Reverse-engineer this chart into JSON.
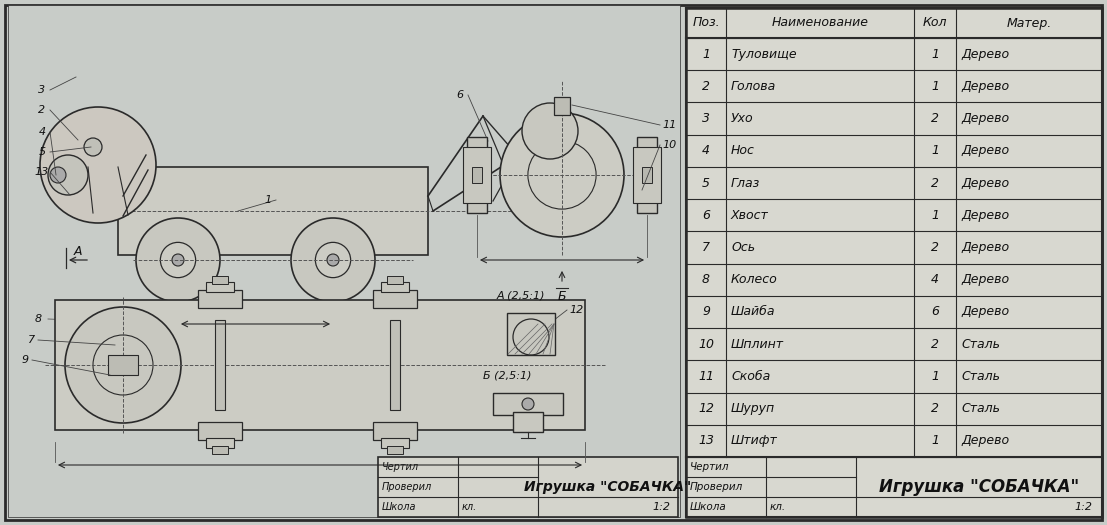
{
  "bg_color": "#c8ccc8",
  "border_color": "#1a1a1a",
  "drawing_bg": "#c8ccc8",
  "table_bg": "#d4d4cc",
  "title": "Игрушка «СОБАЧКА»",
  "scale": "1:2",
  "rows": [
    {
      "pos": "1",
      "name": "Туловище",
      "qty": "1",
      "mat": "Дерево"
    },
    {
      "pos": "2",
      "name": "Голова",
      "qty": "1",
      "mat": "Дерево"
    },
    {
      "pos": "3",
      "name": "Ухо",
      "qty": "2",
      "mat": "Дерево"
    },
    {
      "pos": "4",
      "name": "Нос",
      "qty": "1",
      "mat": "Дерево"
    },
    {
      "pos": "5",
      "name": "Глаз",
      "qty": "2",
      "mat": "Дерево"
    },
    {
      "pos": "6",
      "name": "Хвост",
      "qty": "1",
      "mat": "Дерево"
    },
    {
      "pos": "7",
      "name": "Ось",
      "qty": "2",
      "mat": "Дерево"
    },
    {
      "pos": "8",
      "name": "Колесо",
      "qty": "4",
      "mat": "Дерево"
    },
    {
      "pos": "9",
      "name": "Шайба",
      "qty": "6",
      "mat": "Дерево"
    },
    {
      "pos": "10",
      "name": "Шплинт",
      "qty": "2",
      "mat": "Сталь"
    },
    {
      "pos": "11",
      "name": "Скоба",
      "qty": "1",
      "mat": "Сталь"
    },
    {
      "pos": "12",
      "name": "Шуруп",
      "qty": "2",
      "mat": "Сталь"
    },
    {
      "pos": "13",
      "name": "Штифт",
      "qty": "1",
      "mat": "Дерево"
    }
  ],
  "header": [
    "Поз.",
    "Наименование",
    "Кол",
    "Матер."
  ],
  "title_block_labels": [
    "Чертил",
    "Проверил",
    "Школа"
  ],
  "line_color": "#2a2a2a",
  "text_color": "#111111"
}
